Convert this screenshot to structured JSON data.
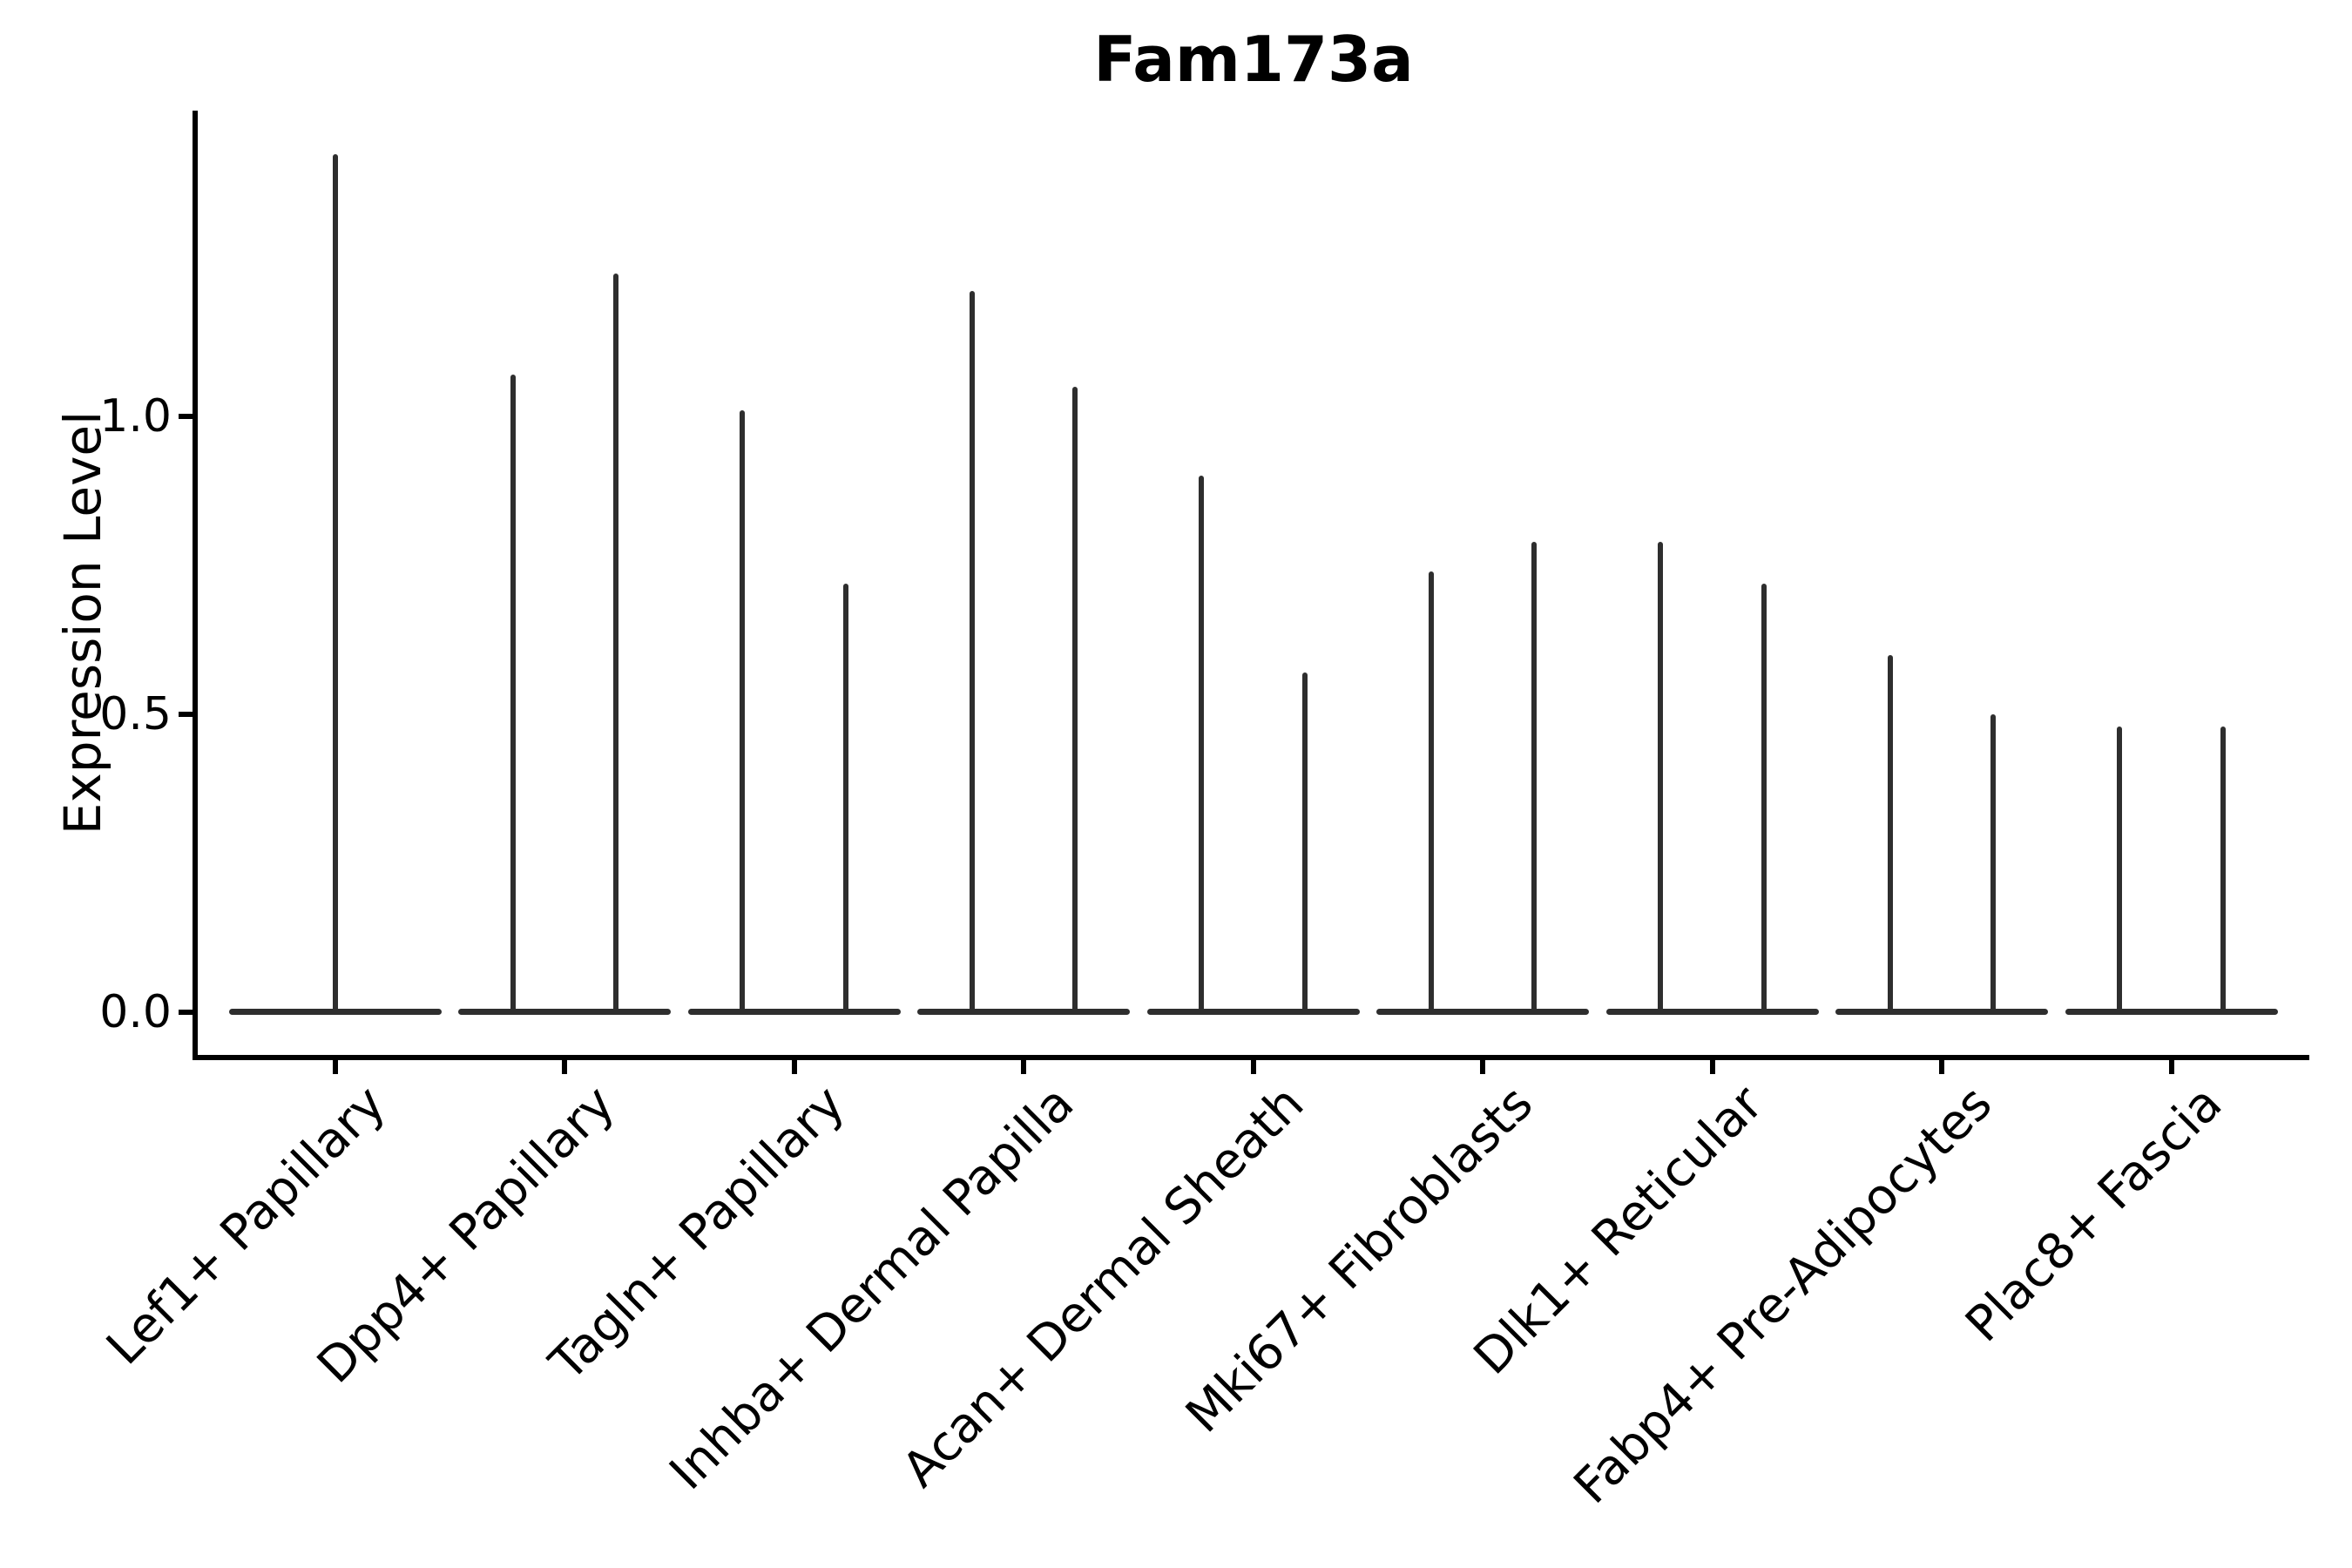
{
  "colors": {
    "ink": "#000000",
    "violin": "#2e2e2e"
  },
  "chart_data": {
    "type": "violin",
    "title": "Fam173a",
    "xlabel": "",
    "ylabel": "Expression Level",
    "legend": "none",
    "grid": false,
    "ylim": [
      -0.07,
      1.51
    ],
    "yticks": [
      {
        "value": 0.0,
        "label": "0.0"
      },
      {
        "value": 0.5,
        "label": "0.5"
      },
      {
        "value": 1.0,
        "label": "1.0"
      }
    ],
    "categories": [
      "Lef1+ Papillary",
      "Dpp4+ Papillary",
      "Tagln+ Papillary",
      "Inhba+ Dermal Papilla",
      "Acan+ Dermal Sheath",
      "Mki67+ Fibroblasts",
      "Dlk1+ Reticular",
      "Fabp4+ Pre-Adipocytes",
      "Plac8+ Fascia"
    ],
    "violins": [
      {
        "category": "Lef1+ Papillary",
        "peak_expression": [
          1.44
        ]
      },
      {
        "category": "Dpp4+ Papillary",
        "peak_expression": [
          1.07,
          1.24
        ]
      },
      {
        "category": "Tagln+ Papillary",
        "peak_expression": [
          1.01,
          0.72
        ]
      },
      {
        "category": "Inhba+ Dermal Papilla",
        "peak_expression": [
          1.21,
          1.05
        ]
      },
      {
        "category": "Acan+ Dermal Sheath",
        "peak_expression": [
          0.9,
          0.57
        ]
      },
      {
        "category": "Mki67+ Fibroblasts",
        "peak_expression": [
          0.74,
          0.79
        ]
      },
      {
        "category": "Dlk1+ Reticular",
        "peak_expression": [
          0.79,
          0.72
        ]
      },
      {
        "category": "Fabp4+ Pre-Adipocytes",
        "peak_expression": [
          0.6,
          0.5
        ]
      },
      {
        "category": "Plac8+ Fascia",
        "peak_expression": [
          0.48,
          0.48
        ]
      }
    ],
    "description": "Each cell type shows very thin violin(s): a wide flat base at expression 0 with narrow spikes up to the peak expression value. First category has one centered violin; all others have two dodged violins."
  }
}
